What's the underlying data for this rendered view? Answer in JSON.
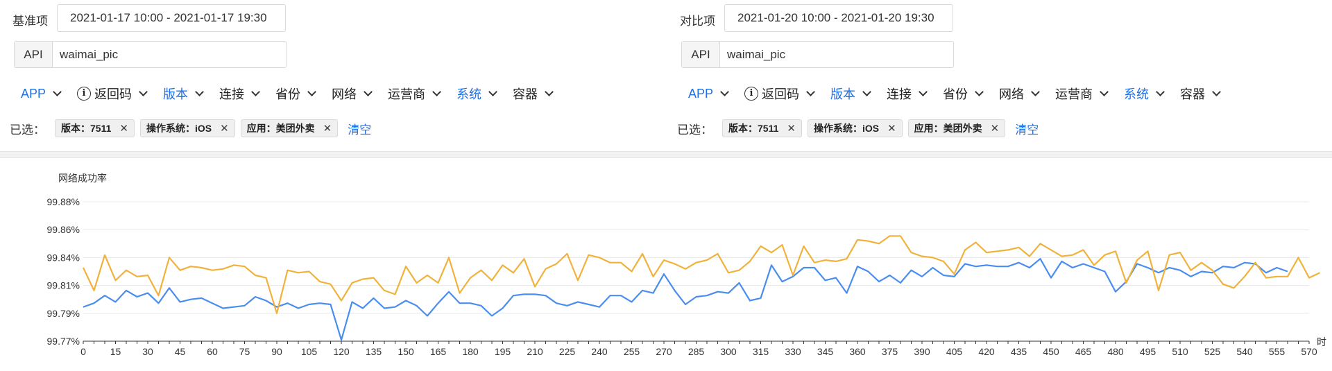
{
  "panels": [
    {
      "range_label": "基准项",
      "range_value": "2021-01-17 10:00 - 2021-01-17 19:30",
      "api_label": "API",
      "api_value": "waimai_pic",
      "filters": [
        {
          "label": "APP",
          "active": true
        },
        {
          "label": "返回码",
          "active": false,
          "info": true
        },
        {
          "label": "版本",
          "active": true
        },
        {
          "label": "连接",
          "active": false
        },
        {
          "label": "省份",
          "active": false
        },
        {
          "label": "网络",
          "active": false
        },
        {
          "label": "运营商",
          "active": false
        },
        {
          "label": "系统",
          "active": true
        },
        {
          "label": "容器",
          "active": false
        }
      ],
      "selected_label": "已选：",
      "tags": [
        "版本：7511",
        "操作系统：iOS",
        "应用：美团外卖"
      ],
      "clear_label": "清空"
    },
    {
      "range_label": "对比项",
      "range_value": "2021-01-20 10:00 - 2021-01-20 19:30",
      "api_label": "API",
      "api_value": "waimai_pic",
      "filters": [
        {
          "label": "APP",
          "active": true
        },
        {
          "label": "返回码",
          "active": false,
          "info": true
        },
        {
          "label": "版本",
          "active": true
        },
        {
          "label": "连接",
          "active": false
        },
        {
          "label": "省份",
          "active": false
        },
        {
          "label": "网络",
          "active": false
        },
        {
          "label": "运营商",
          "active": false
        },
        {
          "label": "系统",
          "active": true
        },
        {
          "label": "容器",
          "active": false
        }
      ],
      "selected_label": "已选：",
      "tags": [
        "版本：7511",
        "操作系统：iOS",
        "应用：美团外卖"
      ],
      "clear_label": "清空"
    }
  ],
  "icons": {
    "info": "info-circle-icon",
    "dropdown": "chevron-down-icon",
    "tag_close": "close-icon",
    "tag_close_glyph": "✕"
  },
  "colors": {
    "accent": "#1f6fe6",
    "series_blue": "#4a8df0",
    "series_orange": "#f0b23a"
  },
  "chart_data": {
    "type": "line",
    "ylabel": "网络成功率",
    "xlabel": "时",
    "y_ticks": [
      "99.77%",
      "99.79%",
      "99.81%",
      "99.84%",
      "99.86%",
      "99.88%"
    ],
    "ylim": [
      99.77,
      99.88
    ],
    "xlim": [
      0,
      570
    ],
    "x_ticks": [
      0,
      15,
      30,
      45,
      60,
      75,
      90,
      105,
      120,
      135,
      150,
      165,
      180,
      195,
      210,
      225,
      240,
      255,
      270,
      285,
      300,
      315,
      330,
      345,
      360,
      375,
      390,
      405,
      420,
      435,
      450,
      465,
      480,
      495,
      510,
      525,
      540,
      555,
      570
    ],
    "grid": true,
    "x_step": 5,
    "series": [
      {
        "color": "#4a8df0",
        "values": [
          99.797,
          99.8,
          99.806,
          99.801,
          99.81,
          99.805,
          99.808,
          99.8,
          99.812,
          99.801,
          99.803,
          99.804,
          99.8,
          99.796,
          99.797,
          99.798,
          99.805,
          99.802,
          99.797,
          99.8,
          99.796,
          99.799,
          99.8,
          99.799,
          99.771,
          99.801,
          99.796,
          99.804,
          99.796,
          99.797,
          99.802,
          99.798,
          99.79,
          99.8,
          99.809,
          99.8,
          99.8,
          99.798,
          99.79,
          99.796,
          99.806,
          99.807,
          99.807,
          99.806,
          99.8,
          99.798,
          99.801,
          99.799,
          99.797,
          99.806,
          99.806,
          99.801,
          99.81,
          99.808,
          99.823,
          99.81,
          99.799,
          99.805,
          99.806,
          99.809,
          99.808,
          99.816,
          99.802,
          99.804,
          99.83,
          99.817,
          99.821,
          99.828,
          99.828,
          99.818,
          99.82,
          99.808,
          99.829,
          99.825,
          99.817,
          99.822,
          99.816,
          99.826,
          99.821,
          99.828,
          99.822,
          99.821,
          99.831,
          99.829,
          99.83,
          99.829,
          99.829,
          99.832,
          99.828,
          99.835,
          99.82,
          99.833,
          99.828,
          99.831,
          99.828,
          99.825,
          99.809,
          99.817,
          99.831,
          99.828,
          99.824,
          99.828,
          99.826,
          99.821,
          99.825,
          99.824,
          99.829,
          99.828,
          99.832,
          99.831,
          99.824,
          99.828,
          99.825
        ]
      },
      {
        "color": "#f0b23a",
        "values": [
          99.828,
          99.81,
          99.838,
          99.818,
          99.826,
          99.821,
          99.822,
          99.806,
          99.836,
          99.826,
          99.829,
          99.828,
          99.826,
          99.827,
          99.83,
          99.829,
          99.822,
          99.82,
          99.792,
          99.826,
          99.824,
          99.825,
          99.817,
          99.815,
          99.802,
          99.816,
          99.819,
          99.82,
          99.81,
          99.807,
          99.829,
          99.816,
          99.822,
          99.816,
          99.836,
          99.808,
          99.82,
          99.826,
          99.818,
          99.83,
          99.824,
          99.835,
          99.813,
          99.827,
          99.831,
          99.839,
          99.818,
          99.838,
          99.836,
          99.832,
          99.832,
          99.825,
          99.839,
          99.821,
          99.834,
          99.831,
          99.827,
          99.832,
          99.834,
          99.839,
          99.824,
          99.826,
          99.833,
          99.845,
          99.84,
          99.846,
          99.822,
          99.845,
          99.832,
          99.834,
          99.833,
          99.835,
          99.85,
          99.849,
          99.847,
          99.853,
          99.853,
          99.84,
          99.837,
          99.836,
          99.833,
          99.823,
          99.842,
          99.848,
          99.84,
          99.841,
          99.842,
          99.844,
          99.837,
          99.847,
          99.842,
          99.837,
          99.838,
          99.842,
          99.83,
          99.838,
          99.841,
          99.816,
          99.834,
          99.841,
          99.81,
          99.838,
          99.84,
          99.826,
          99.832,
          99.826,
          99.815,
          99.812,
          99.821,
          99.832,
          99.82,
          99.821,
          99.821,
          99.836,
          99.82,
          99.824
        ]
      }
    ]
  }
}
